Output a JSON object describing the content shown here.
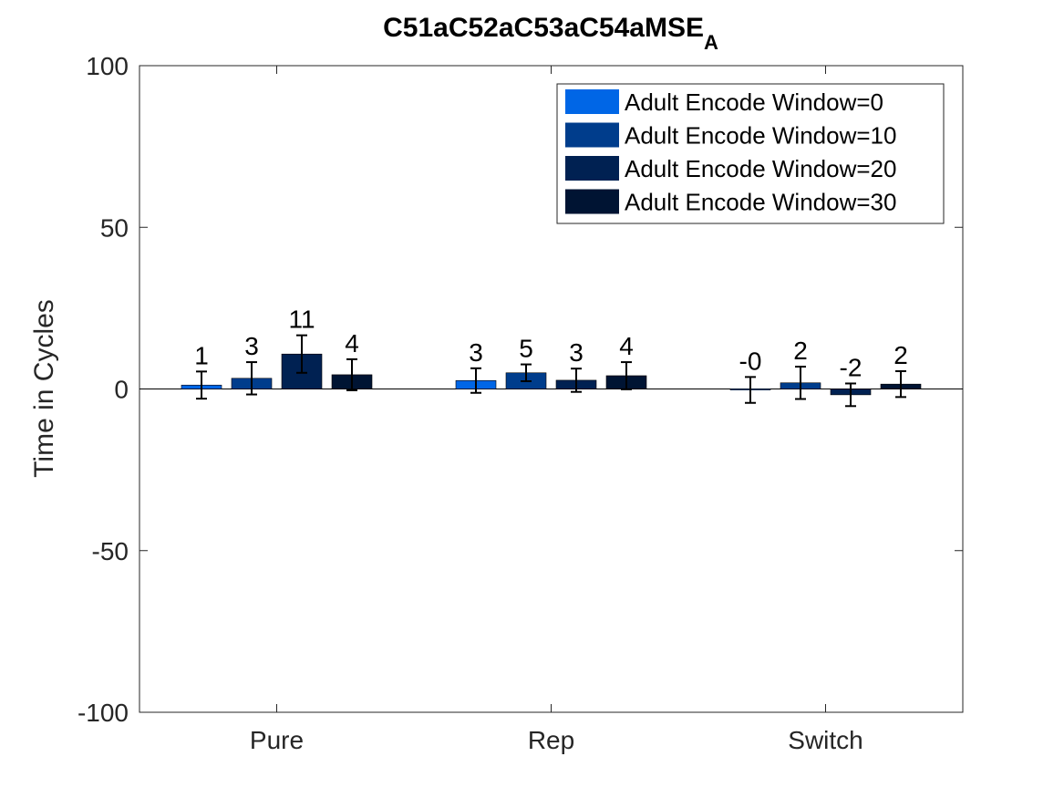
{
  "chart_data": {
    "type": "bar",
    "title": "C51aC52aC53aC54aMSE",
    "title_subscript": "A",
    "xlabel": "",
    "ylabel": "Time in Cycles",
    "ylim": [
      -100,
      100
    ],
    "yticks": [
      -100,
      -50,
      0,
      50,
      100
    ],
    "categories": [
      "Pure",
      "Rep",
      "Switch"
    ],
    "legend_position": "top-right",
    "series": [
      {
        "name": "Adult Encode Window=0",
        "color": "#0066e6",
        "values": [
          1.2,
          2.6,
          -0.3
        ],
        "errors": [
          4.2,
          3.8,
          4.0
        ],
        "labels": [
          "1",
          "3",
          "-0"
        ]
      },
      {
        "name": "Adult Encode Window=10",
        "color": "#003d8c",
        "values": [
          3.3,
          5.0,
          1.9
        ],
        "errors": [
          5.0,
          2.6,
          5.0
        ],
        "labels": [
          "3",
          "5",
          "2"
        ]
      },
      {
        "name": "Adult Encode Window=20",
        "color": "#002152",
        "values": [
          10.8,
          2.7,
          -1.8
        ],
        "errors": [
          5.8,
          3.6,
          3.5
        ],
        "labels": [
          "11",
          "3",
          "-2"
        ]
      },
      {
        "name": "Adult Encode Window=30",
        "color": "#001433",
        "values": [
          4.4,
          4.1,
          1.5
        ],
        "errors": [
          4.8,
          4.2,
          4.0
        ],
        "labels": [
          "4",
          "4",
          "2"
        ]
      }
    ]
  }
}
